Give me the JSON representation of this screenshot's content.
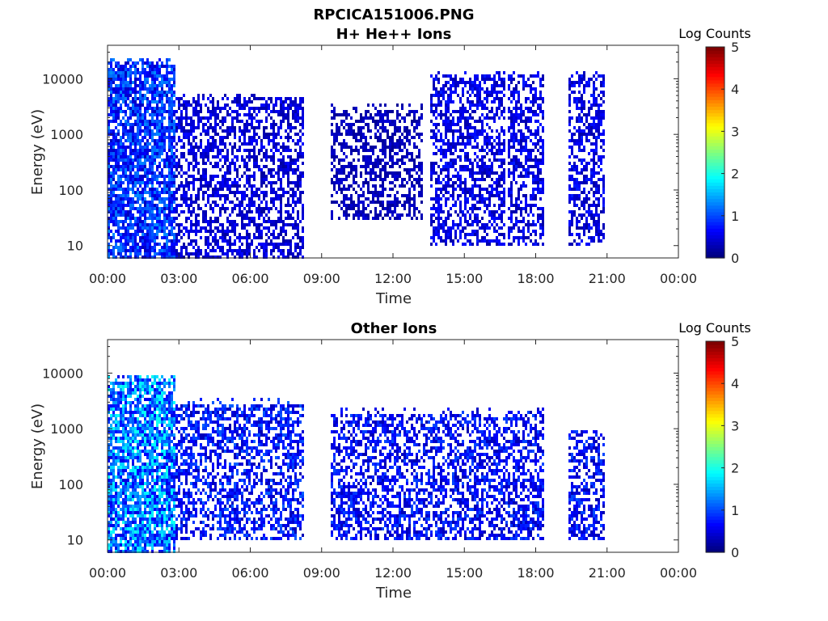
{
  "figure": {
    "title": "RPCICA151006.PNG"
  },
  "chart_data": [
    {
      "type": "heatmap",
      "title": "H+ He++ Ions",
      "xlabel": "Time",
      "ylabel": "Energy (eV)",
      "x_ticks": [
        "00:00",
        "03:00",
        "06:00",
        "09:00",
        "12:00",
        "15:00",
        "18:00",
        "21:00",
        "00:00"
      ],
      "x_range_hours": [
        0,
        24
      ],
      "y_scale": "log",
      "y_ticks": [
        10,
        100,
        1000,
        10000
      ],
      "y_tick_labels": [
        "10",
        "100",
        "1000",
        "10000"
      ],
      "ylim": [
        6,
        40000
      ],
      "colorbar": {
        "title": "Log Counts",
        "range": [
          0,
          5
        ],
        "ticks": [
          "0",
          "1",
          "2",
          "3",
          "4",
          "5"
        ],
        "colormap": "jet"
      },
      "data_gaps_hours": [
        [
          8.2,
          9.3
        ],
        [
          13.2,
          13.5
        ],
        [
          16.7,
          16.8
        ],
        [
          18.3,
          19.3
        ],
        [
          20.9,
          24
        ]
      ],
      "activity": [
        {
          "start": 0.0,
          "end": 2.8,
          "emin": 6,
          "emax": 20000,
          "intensity": 1.2
        },
        {
          "start": 2.8,
          "end": 8.2,
          "emin": 6,
          "emax": 5000,
          "intensity": 0.6
        },
        {
          "start": 9.3,
          "end": 13.2,
          "emin": 30,
          "emax": 3000,
          "intensity": 0.4
        },
        {
          "start": 13.5,
          "end": 16.7,
          "emin": 10,
          "emax": 12000,
          "intensity": 0.7
        },
        {
          "start": 16.8,
          "end": 18.3,
          "emin": 10,
          "emax": 12000,
          "intensity": 0.7
        },
        {
          "start": 19.3,
          "end": 20.9,
          "emin": 10,
          "emax": 12000,
          "intensity": 0.7
        }
      ]
    },
    {
      "type": "heatmap",
      "title": "Other Ions",
      "xlabel": "Time",
      "ylabel": "Energy (eV)",
      "x_ticks": [
        "00:00",
        "03:00",
        "06:00",
        "09:00",
        "12:00",
        "15:00",
        "18:00",
        "21:00",
        "00:00"
      ],
      "x_range_hours": [
        0,
        24
      ],
      "y_scale": "log",
      "y_ticks": [
        10,
        100,
        1000,
        10000
      ],
      "y_tick_labels": [
        "10",
        "100",
        "1000",
        "10000"
      ],
      "ylim": [
        6,
        40000
      ],
      "colorbar": {
        "title": "Log Counts",
        "range": [
          0,
          5
        ],
        "ticks": [
          "0",
          "1",
          "2",
          "3",
          "4",
          "5"
        ],
        "colormap": "jet"
      },
      "data_gaps_hours": [
        [
          8.2,
          9.3
        ],
        [
          18.3,
          19.3
        ],
        [
          20.9,
          24
        ]
      ],
      "activity": [
        {
          "start": 0.0,
          "end": 2.8,
          "emin": 6,
          "emax": 8000,
          "intensity": 1.8
        },
        {
          "start": 2.8,
          "end": 8.2,
          "emin": 10,
          "emax": 3000,
          "intensity": 1.0
        },
        {
          "start": 9.3,
          "end": 18.3,
          "emin": 10,
          "emax": 2000,
          "intensity": 0.9
        },
        {
          "start": 19.3,
          "end": 20.9,
          "emin": 10,
          "emax": 1000,
          "intensity": 0.9
        }
      ]
    }
  ]
}
